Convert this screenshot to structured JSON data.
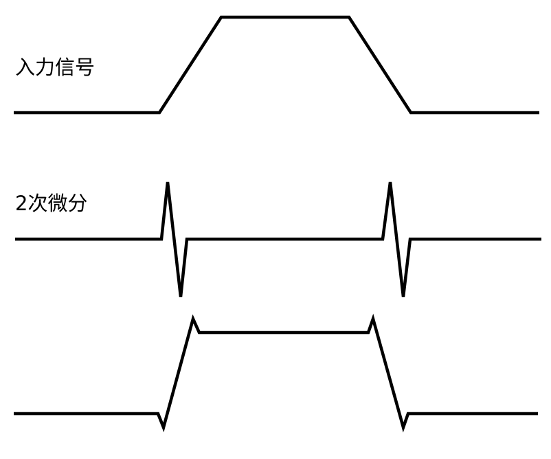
{
  "labels": {
    "input_signal": "入力信号",
    "second_derivative": "2次微分"
  },
  "colors": {
    "waveform": "#000000",
    "background": "#ffffff"
  }
}
